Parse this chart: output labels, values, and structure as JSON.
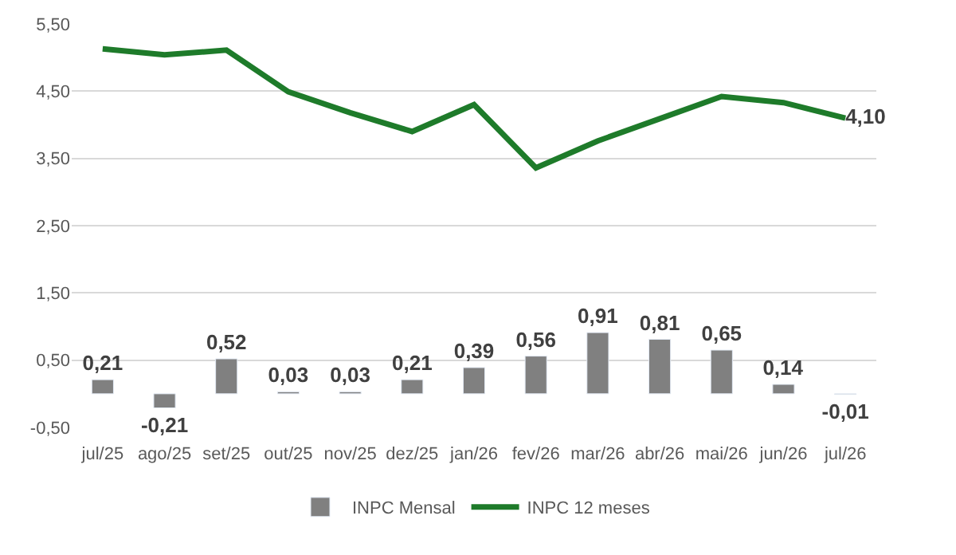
{
  "chart_data": {
    "type": "bar",
    "categories": [
      "jul/25",
      "ago/25",
      "set/25",
      "out/25",
      "nov/25",
      "dez/25",
      "jan/26",
      "fev/26",
      "mar/26",
      "abr/26",
      "mai/26",
      "jun/26",
      "jul/26"
    ],
    "series": [
      {
        "name": "INPC Mensal",
        "color": "#808080",
        "values": [
          0.21,
          -0.21,
          0.52,
          0.03,
          0.03,
          0.21,
          0.39,
          0.56,
          0.91,
          0.81,
          0.65,
          0.14,
          -0.01
        ],
        "value_labels": [
          "0,21",
          "-0,21",
          "0,52",
          "0,03",
          "0,03",
          "0,21",
          "0,39",
          "0,56",
          "0,91",
          "0,81",
          "0,65",
          "0,14",
          "-0,01"
        ]
      },
      {
        "name": "INPC 12 meses",
        "type": "line",
        "color": "#1e7b2a",
        "values": [
          5.13,
          5.04,
          5.11,
          4.49,
          4.18,
          3.9,
          4.3,
          3.36,
          3.76,
          4.09,
          4.42,
          4.33,
          4.1
        ],
        "value_labels": [
          null,
          null,
          null,
          null,
          null,
          null,
          null,
          null,
          null,
          null,
          null,
          null,
          "4,10"
        ]
      }
    ],
    "ylim": [
      -0.5,
      5.5
    ],
    "yticks": [
      {
        "value": -0.5,
        "label": "-0,50"
      },
      {
        "value": 0.5,
        "label": "0,50"
      },
      {
        "value": 1.5,
        "label": "1,50"
      },
      {
        "value": 2.5,
        "label": "2,50"
      },
      {
        "value": 3.5,
        "label": "3,50"
      },
      {
        "value": 4.5,
        "label": "4,50"
      },
      {
        "value": 5.5,
        "label": "5,50"
      }
    ],
    "grid": "y",
    "legend": "bottom",
    "marker": "none",
    "line_style": "solid"
  }
}
